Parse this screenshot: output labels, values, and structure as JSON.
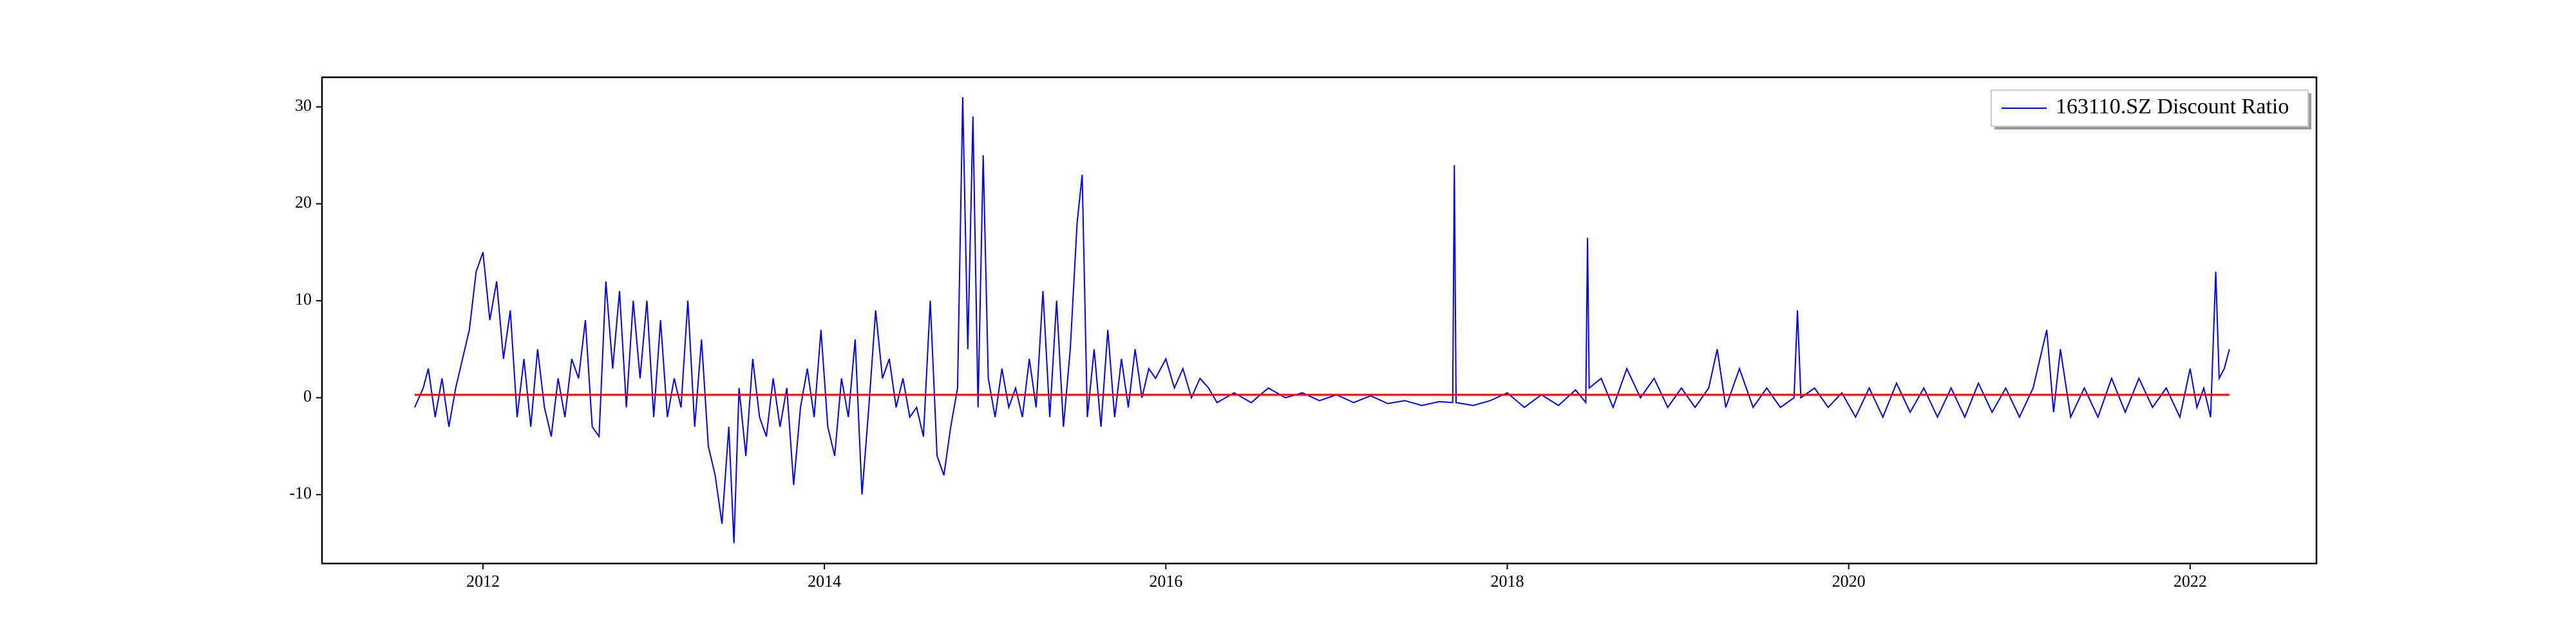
{
  "chart_data": {
    "type": "line",
    "x": [
      2011.6,
      2011.65,
      2011.68,
      2011.72,
      2011.76,
      2011.8,
      2011.84,
      2011.88,
      2011.92,
      2011.96,
      2012.0,
      2012.04,
      2012.08,
      2012.12,
      2012.16,
      2012.2,
      2012.24,
      2012.28,
      2012.32,
      2012.36,
      2012.4,
      2012.44,
      2012.48,
      2012.52,
      2012.56,
      2012.6,
      2012.64,
      2012.68,
      2012.72,
      2012.76,
      2012.8,
      2012.84,
      2012.88,
      2012.92,
      2012.96,
      2013.0,
      2013.04,
      2013.08,
      2013.12,
      2013.16,
      2013.2,
      2013.24,
      2013.28,
      2013.32,
      2013.36,
      2013.4,
      2013.44,
      2013.47,
      2013.5,
      2013.54,
      2013.58,
      2013.62,
      2013.66,
      2013.7,
      2013.74,
      2013.78,
      2013.82,
      2013.86,
      2013.9,
      2013.94,
      2013.98,
      2014.02,
      2014.06,
      2014.1,
      2014.14,
      2014.18,
      2014.22,
      2014.26,
      2014.3,
      2014.34,
      2014.38,
      2014.42,
      2014.46,
      2014.5,
      2014.54,
      2014.58,
      2014.62,
      2014.66,
      2014.7,
      2014.74,
      2014.78,
      2014.81,
      2014.84,
      2014.87,
      2014.9,
      2014.93,
      2014.96,
      2015.0,
      2015.04,
      2015.08,
      2015.12,
      2015.16,
      2015.2,
      2015.24,
      2015.28,
      2015.32,
      2015.36,
      2015.4,
      2015.44,
      2015.48,
      2015.51,
      2015.54,
      2015.58,
      2015.62,
      2015.66,
      2015.7,
      2015.74,
      2015.78,
      2015.82,
      2015.86,
      2015.9,
      2015.94,
      2016.0,
      2016.05,
      2016.1,
      2016.15,
      2016.2,
      2016.25,
      2016.3,
      2016.4,
      2016.5,
      2016.6,
      2016.7,
      2016.8,
      2016.9,
      2017.0,
      2017.1,
      2017.2,
      2017.3,
      2017.4,
      2017.5,
      2017.6,
      2017.68,
      2017.69,
      2017.7,
      2017.8,
      2017.9,
      2018.0,
      2018.1,
      2018.2,
      2018.3,
      2018.4,
      2018.46,
      2018.47,
      2018.48,
      2018.55,
      2018.62,
      2018.7,
      2018.78,
      2018.86,
      2018.94,
      2019.02,
      2019.1,
      2019.18,
      2019.23,
      2019.28,
      2019.36,
      2019.44,
      2019.52,
      2019.6,
      2019.68,
      2019.7,
      2019.72,
      2019.8,
      2019.88,
      2019.96,
      2020.04,
      2020.12,
      2020.2,
      2020.28,
      2020.36,
      2020.44,
      2020.52,
      2020.6,
      2020.68,
      2020.76,
      2020.84,
      2020.92,
      2021.0,
      2021.08,
      2021.16,
      2021.2,
      2021.24,
      2021.3,
      2021.38,
      2021.46,
      2021.54,
      2021.62,
      2021.7,
      2021.78,
      2021.86,
      2021.94,
      2022.0,
      2022.04,
      2022.08,
      2022.12,
      2022.15,
      2022.17,
      2022.2,
      2022.23
    ],
    "series": [
      {
        "name": "163110.SZ Discount Ratio",
        "color": "#0000ff",
        "values": [
          -1,
          1,
          3,
          -2,
          2,
          -3,
          1,
          4,
          7,
          13,
          15,
          8,
          12,
          4,
          9,
          -2,
          4,
          -3,
          5,
          -1,
          -4,
          2,
          -2,
          4,
          2,
          8,
          -3,
          -4,
          12,
          3,
          11,
          -1,
          10,
          2,
          10,
          -2,
          8,
          -2,
          2,
          -1,
          10,
          -3,
          6,
          -5,
          -8,
          -13,
          -3,
          -15,
          1,
          -6,
          4,
          -2,
          -4,
          2,
          -3,
          1,
          -9,
          -1,
          3,
          -2,
          7,
          -3,
          -6,
          2,
          -2,
          6,
          -10,
          -1,
          9,
          2,
          4,
          -1,
          2,
          -2,
          -1,
          -4,
          10,
          -6,
          -8,
          -3,
          1,
          31,
          5,
          29,
          -1,
          25,
          2,
          -2,
          3,
          -1,
          1,
          -2,
          4,
          -1,
          11,
          -2,
          10,
          -3,
          5,
          18,
          23,
          -2,
          5,
          -3,
          7,
          -2,
          4,
          -1,
          5,
          0,
          3,
          2,
          4,
          1,
          3,
          0,
          2,
          1,
          -0.5,
          0.5,
          -0.5,
          1,
          0,
          0.5,
          -0.3,
          0.3,
          -0.5,
          0.2,
          -0.6,
          -0.3,
          -0.8,
          -0.4,
          -0.5,
          24,
          -0.5,
          -0.8,
          -0.3,
          0.5,
          -1,
          0.3,
          -0.8,
          0.8,
          -0.5,
          16.5,
          1,
          2,
          -1,
          3,
          0,
          2,
          -1,
          1,
          -1,
          1,
          5,
          -1,
          3,
          -1,
          1,
          -1,
          0,
          9,
          0,
          1,
          -1,
          0.5,
          -2,
          1,
          -2,
          1.5,
          -1.5,
          1,
          -2,
          1,
          -2,
          1.5,
          -1.5,
          1,
          -2,
          1,
          7,
          -1.5,
          5,
          -2,
          1,
          -2,
          2,
          -1.5,
          2,
          -1,
          1,
          -2,
          3,
          -1,
          1,
          -2,
          13,
          2,
          3,
          5
        ]
      }
    ],
    "reference_line": {
      "y": 0.3,
      "x": [
        2011.6,
        2022.23
      ],
      "color": "#ff0000"
    },
    "xlim": [
      2011.057,
      2022.74
    ],
    "xticks": [
      2012,
      2014,
      2016,
      2018,
      2020,
      2022
    ],
    "ylim": [
      -17.1,
      33.05
    ],
    "yticks": [
      -10,
      0,
      10,
      20,
      30
    ],
    "legend": "upper right"
  }
}
